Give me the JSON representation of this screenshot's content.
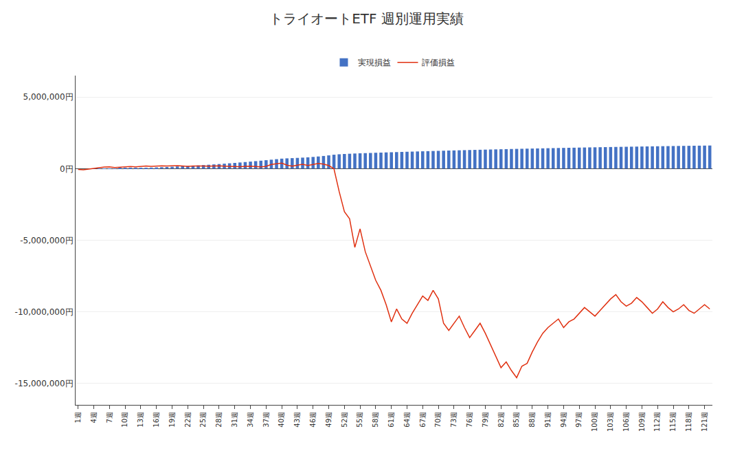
{
  "chart_data": {
    "type": "bar",
    "title": "トライオートETF 週別運用実績",
    "x": [
      1,
      2,
      3,
      4,
      5,
      6,
      7,
      8,
      9,
      10,
      11,
      12,
      13,
      14,
      15,
      16,
      17,
      18,
      19,
      20,
      21,
      22,
      23,
      24,
      25,
      26,
      27,
      28,
      29,
      30,
      31,
      32,
      33,
      34,
      35,
      36,
      37,
      38,
      39,
      40,
      41,
      42,
      43,
      44,
      45,
      46,
      47,
      48,
      49,
      50,
      51,
      52,
      53,
      54,
      55,
      56,
      57,
      58,
      59,
      60,
      61,
      62,
      63,
      64,
      65,
      66,
      67,
      68,
      69,
      70,
      71,
      72,
      73,
      74,
      75,
      76,
      77,
      78,
      79,
      80,
      81,
      82,
      83,
      84,
      85,
      86,
      87,
      88,
      89,
      90,
      91,
      92,
      93,
      94,
      95,
      96,
      97,
      98,
      99,
      100,
      101,
      102,
      103,
      104,
      105,
      106,
      107,
      108,
      109,
      110,
      111,
      112,
      113,
      114,
      115,
      116,
      117,
      118,
      119,
      120,
      121,
      122
    ],
    "series": [
      {
        "name": "実現損益",
        "type": "bar",
        "color": "#4472C4",
        "values": [
          0,
          0,
          0,
          2000,
          4000,
          6000,
          8000,
          12000,
          18000,
          25000,
          33000,
          42000,
          52000,
          63000,
          75000,
          88000,
          102000,
          117000,
          133000,
          150000,
          168000,
          187000,
          207000,
          228000,
          250000,
          273000,
          297000,
          322000,
          348000,
          375000,
          403000,
          432000,
          462000,
          493000,
          525000,
          558000,
          592000,
          627000,
          663000,
          700000,
          720000,
          735000,
          752000,
          771000,
          793000,
          820000,
          851000,
          887000,
          928000,
          975000,
          1005000,
          1025000,
          1043000,
          1059000,
          1073000,
          1086000,
          1098000,
          1111000,
          1123000,
          1135000,
          1147000,
          1158000,
          1170000,
          1181000,
          1192000,
          1203000,
          1214000,
          1224000,
          1235000,
          1245000,
          1255000,
          1265000,
          1275000,
          1284000,
          1294000,
          1303000,
          1312000,
          1321000,
          1330000,
          1339000,
          1348000,
          1357000,
          1365000,
          1374000,
          1382000,
          1390000,
          1398000,
          1406000,
          1414000,
          1421000,
          1429000,
          1436000,
          1444000,
          1451000,
          1458000,
          1465000,
          1472000,
          1479000,
          1486000,
          1492000,
          1499000,
          1505000,
          1512000,
          1518000,
          1524000,
          1530000,
          1536000,
          1542000,
          1548000,
          1554000,
          1560000,
          1565000,
          1571000,
          1576000,
          1582000,
          1587000,
          1592000,
          1597000,
          1602000,
          1607000,
          1612000,
          1617000
        ]
      },
      {
        "name": "評価損益",
        "type": "line",
        "color": "#E03010",
        "values": [
          -50000,
          -80000,
          -30000,
          30000,
          70000,
          110000,
          130000,
          80000,
          100000,
          130000,
          150000,
          130000,
          160000,
          180000,
          160000,
          180000,
          200000,
          180000,
          200000,
          210000,
          185000,
          165000,
          190000,
          200000,
          180000,
          170000,
          185000,
          195000,
          178000,
          160000,
          152000,
          143000,
          158000,
          172000,
          148000,
          130000,
          162000,
          290000,
          340000,
          390000,
          250000,
          170000,
          250000,
          300000,
          220000,
          300000,
          370000,
          320000,
          220000,
          -10000,
          -1600000,
          -3000000,
          -3500000,
          -5500000,
          -4200000,
          -5800000,
          -6800000,
          -7800000,
          -8500000,
          -9500000,
          -10700000,
          -9800000,
          -10500000,
          -10800000,
          -10100000,
          -9500000,
          -8900000,
          -9200000,
          -8500000,
          -9100000,
          -10800000,
          -11300000,
          -10800000,
          -10300000,
          -11100000,
          -11800000,
          -11300000,
          -10800000,
          -11500000,
          -12300000,
          -13100000,
          -13900000,
          -13500000,
          -14100000,
          -14600000,
          -13800000,
          -13600000,
          -12800000,
          -12100000,
          -11500000,
          -11100000,
          -10800000,
          -10500000,
          -11100000,
          -10700000,
          -10500000,
          -10100000,
          -9700000,
          -10000000,
          -10300000,
          -9900000,
          -9500000,
          -9100000,
          -8800000,
          -9300000,
          -9600000,
          -9400000,
          -9000000,
          -9300000,
          -9700000,
          -10100000,
          -9800000,
          -9300000,
          -9700000,
          -10000000,
          -9800000,
          -9500000,
          -9900000,
          -10100000,
          -9800000,
          -9500000,
          -9800000
        ]
      }
    ],
    "xlim": [
      0.5,
      122.5
    ],
    "xticks": [
      {
        "value": 1,
        "label": "1週"
      },
      {
        "value": 4,
        "label": "4週"
      },
      {
        "value": 7,
        "label": "7週"
      },
      {
        "value": 10,
        "label": "10週"
      },
      {
        "value": 13,
        "label": "13週"
      },
      {
        "value": 16,
        "label": "16週"
      },
      {
        "value": 19,
        "label": "19週"
      },
      {
        "value": 22,
        "label": "22週"
      },
      {
        "value": 25,
        "label": "25週"
      },
      {
        "value": 28,
        "label": "28週"
      },
      {
        "value": 31,
        "label": "31週"
      },
      {
        "value": 34,
        "label": "34週"
      },
      {
        "value": 37,
        "label": "37週"
      },
      {
        "value": 40,
        "label": "40週"
      },
      {
        "value": 43,
        "label": "43週"
      },
      {
        "value": 46,
        "label": "46週"
      },
      {
        "value": 49,
        "label": "49週"
      },
      {
        "value": 52,
        "label": "52週"
      },
      {
        "value": 55,
        "label": "55週"
      },
      {
        "value": 58,
        "label": "58週"
      },
      {
        "value": 61,
        "label": "61週"
      },
      {
        "value": 64,
        "label": "64週"
      },
      {
        "value": 67,
        "label": "67週"
      },
      {
        "value": 70,
        "label": "70週"
      },
      {
        "value": 73,
        "label": "73週"
      },
      {
        "value": 76,
        "label": "76週"
      },
      {
        "value": 79,
        "label": "79週"
      },
      {
        "value": 82,
        "label": "82週"
      },
      {
        "value": 85,
        "label": "85週"
      },
      {
        "value": 88,
        "label": "88週"
      },
      {
        "value": 91,
        "label": "91週"
      },
      {
        "value": 94,
        "label": "94週"
      },
      {
        "value": 97,
        "label": "97週"
      },
      {
        "value": 100,
        "label": "100週"
      },
      {
        "value": 103,
        "label": "103週"
      },
      {
        "value": 106,
        "label": "106週"
      },
      {
        "value": 109,
        "label": "109週"
      },
      {
        "value": 112,
        "label": "112週"
      },
      {
        "value": 115,
        "label": "115週"
      },
      {
        "value": 118,
        "label": "118週"
      },
      {
        "value": 121,
        "label": "121週"
      }
    ],
    "ylim": [
      -16500000,
      6500000
    ],
    "yticks": [
      {
        "value": 5000000,
        "label": "5,000,000円"
      },
      {
        "value": 0,
        "label": "0円"
      },
      {
        "value": -5000000,
        "label": "-5,000,000円"
      },
      {
        "value": -10000000,
        "label": "-10,000,000円"
      },
      {
        "value": -15000000,
        "label": "-15,000,000円"
      }
    ],
    "grid": true,
    "legend": "top"
  }
}
